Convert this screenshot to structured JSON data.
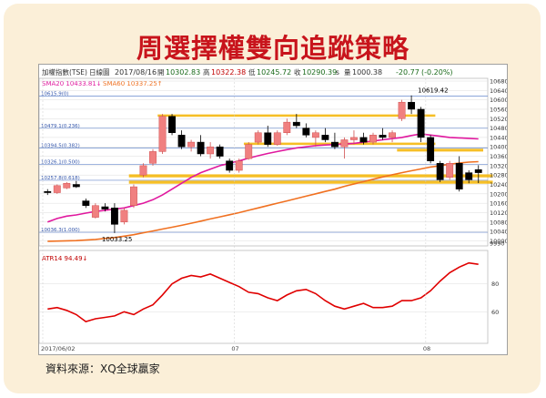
{
  "title": "周選擇權雙向追蹤策略",
  "source": "資料來源：XQ全球贏家",
  "header": {
    "index": "加權指數(TSE)",
    "period": "日線圖",
    "date": "2017/08/16",
    "open_label": "開",
    "open": "10302.83",
    "high_label": "高",
    "high": "10322.38",
    "low_label": "低",
    "low": "10245.72",
    "close_label": "收",
    "close": "10290.39",
    "close_suffix": "s",
    "volume_label": "量",
    "volume": "1000.38",
    "change": "-20.77",
    "change_pct": "(-0.20%)"
  },
  "legend": {
    "sma20": "SMA20 10433.81↓",
    "sma60": "SMA60 10337.25↑",
    "atr": "ATR14 94.49↓"
  },
  "colors": {
    "title": "#c8141c",
    "frame": "#fbefd8",
    "up": "#f08080",
    "down": "#000000",
    "sma20": "#e0189e",
    "sma60": "#f07020",
    "band": "#f5b400",
    "level": "#6688cc",
    "grid": "#dcdcdc"
  },
  "chart_data": [
    {
      "type": "candlestick",
      "title": "",
      "price_ticks": [
        "10680",
        "10640",
        "10600",
        "10560",
        "10520",
        "10480",
        "10440",
        "10400",
        "10360",
        "10320",
        "10280",
        "10240",
        "10200",
        "10160",
        "10120",
        "10080",
        "10040",
        "10000",
        "9990"
      ],
      "x_ticks": [
        "2017/06/02",
        "07",
        "08"
      ],
      "ylim": [
        9990,
        10680
      ],
      "annotations": [
        {
          "text": "10619.42",
          "x": 40,
          "y": 10619.42
        },
        {
          "text": "10033.25",
          "x": 7,
          "y": 10033.25
        }
      ],
      "levels": [
        {
          "label": "10615.9(0)",
          "value": 10615.9
        },
        {
          "label": "10479.1(0.236)",
          "value": 10479.1
        },
        {
          "label": "10394.5(0.382)",
          "value": 10394.5
        },
        {
          "label": "10326.1(0.500)",
          "value": 10326.1
        },
        {
          "label": "10257.8(0.618)",
          "value": 10257.8
        },
        {
          "label": "10036.3(1.000)",
          "value": 10036.3
        }
      ],
      "bands": [
        {
          "from": 12,
          "to": 40,
          "low": 10528,
          "high": 10538
        },
        {
          "from": 21,
          "to": 40,
          "low": 10408,
          "high": 10418
        },
        {
          "from": 37,
          "to": 45,
          "low": 10380,
          "high": 10392
        },
        {
          "from": 9,
          "to": 46,
          "low": 10270,
          "high": 10283
        },
        {
          "from": 9,
          "to": 46,
          "low": 10243,
          "high": 10256
        }
      ],
      "candles": [
        {
          "o": 10210,
          "h": 10220,
          "l": 10195,
          "c": 10205
        },
        {
          "o": 10205,
          "h": 10240,
          "l": 10200,
          "c": 10235
        },
        {
          "o": 10225,
          "h": 10250,
          "l": 10220,
          "c": 10245
        },
        {
          "o": 10240,
          "h": 10255,
          "l": 10225,
          "c": 10230
        },
        {
          "o": 10170,
          "h": 10180,
          "l": 10140,
          "c": 10150
        },
        {
          "o": 10100,
          "h": 10160,
          "l": 10095,
          "c": 10150
        },
        {
          "o": 10145,
          "h": 10160,
          "l": 10125,
          "c": 10135
        },
        {
          "o": 10140,
          "h": 10160,
          "l": 10033,
          "c": 10070
        },
        {
          "o": 10080,
          "h": 10140,
          "l": 10070,
          "c": 10130
        },
        {
          "o": 10150,
          "h": 10240,
          "l": 10140,
          "c": 10230
        },
        {
          "o": 10280,
          "h": 10330,
          "l": 10270,
          "c": 10320
        },
        {
          "o": 10330,
          "h": 10390,
          "l": 10320,
          "c": 10380
        },
        {
          "o": 10380,
          "h": 10540,
          "l": 10370,
          "c": 10530
        },
        {
          "o": 10530,
          "h": 10540,
          "l": 10450,
          "c": 10460
        },
        {
          "o": 10450,
          "h": 10470,
          "l": 10390,
          "c": 10400
        },
        {
          "o": 10400,
          "h": 10430,
          "l": 10380,
          "c": 10420
        },
        {
          "o": 10420,
          "h": 10450,
          "l": 10360,
          "c": 10370
        },
        {
          "o": 10370,
          "h": 10420,
          "l": 10350,
          "c": 10400
        },
        {
          "o": 10400,
          "h": 10410,
          "l": 10350,
          "c": 10360
        },
        {
          "o": 10340,
          "h": 10350,
          "l": 10290,
          "c": 10300
        },
        {
          "o": 10300,
          "h": 10350,
          "l": 10290,
          "c": 10340
        },
        {
          "o": 10350,
          "h": 10420,
          "l": 10345,
          "c": 10410
        },
        {
          "o": 10420,
          "h": 10470,
          "l": 10410,
          "c": 10460
        },
        {
          "o": 10460,
          "h": 10490,
          "l": 10400,
          "c": 10410
        },
        {
          "o": 10410,
          "h": 10470,
          "l": 10405,
          "c": 10460
        },
        {
          "o": 10460,
          "h": 10520,
          "l": 10450,
          "c": 10505
        },
        {
          "o": 10505,
          "h": 10540,
          "l": 10480,
          "c": 10490
        },
        {
          "o": 10480,
          "h": 10500,
          "l": 10440,
          "c": 10450
        },
        {
          "o": 10440,
          "h": 10470,
          "l": 10400,
          "c": 10460
        },
        {
          "o": 10450,
          "h": 10480,
          "l": 10420,
          "c": 10430
        },
        {
          "o": 10420,
          "h": 10460,
          "l": 10390,
          "c": 10400
        },
        {
          "o": 10400,
          "h": 10440,
          "l": 10350,
          "c": 10430
        },
        {
          "o": 10430,
          "h": 10470,
          "l": 10410,
          "c": 10440
        },
        {
          "o": 10440,
          "h": 10460,
          "l": 10410,
          "c": 10420
        },
        {
          "o": 10420,
          "h": 10460,
          "l": 10410,
          "c": 10450
        },
        {
          "o": 10450,
          "h": 10480,
          "l": 10430,
          "c": 10440
        },
        {
          "o": 10440,
          "h": 10470,
          "l": 10420,
          "c": 10460
        },
        {
          "o": 10520,
          "h": 10600,
          "l": 10510,
          "c": 10590
        },
        {
          "o": 10590,
          "h": 10619,
          "l": 10540,
          "c": 10560
        },
        {
          "o": 10560,
          "h": 10570,
          "l": 10420,
          "c": 10440
        },
        {
          "o": 10440,
          "h": 10450,
          "l": 10330,
          "c": 10340
        },
        {
          "o": 10330,
          "h": 10340,
          "l": 10250,
          "c": 10260
        },
        {
          "o": 10270,
          "h": 10340,
          "l": 10260,
          "c": 10330
        },
        {
          "o": 10330,
          "h": 10360,
          "l": 10210,
          "c": 10220
        },
        {
          "o": 10290,
          "h": 10300,
          "l": 10245,
          "c": 10260
        },
        {
          "o": 10303,
          "h": 10322,
          "l": 10246,
          "c": 10290
        }
      ],
      "sma20": [
        10080,
        10095,
        10105,
        10110,
        10118,
        10125,
        10130,
        10135,
        10140,
        10150,
        10160,
        10175,
        10195,
        10220,
        10245,
        10270,
        10290,
        10305,
        10320,
        10330,
        10340,
        10352,
        10362,
        10372,
        10380,
        10388,
        10395,
        10400,
        10405,
        10408,
        10410,
        10412,
        10415,
        10420,
        10425,
        10430,
        10435,
        10440,
        10448,
        10455,
        10450,
        10445,
        10440,
        10438,
        10436,
        10434
      ],
      "sma60": [
        9998,
        9999,
        10000,
        10001,
        10003,
        10006,
        10010,
        10014,
        10020,
        10026,
        10034,
        10042,
        10050,
        10058,
        10066,
        10075,
        10084,
        10093,
        10102,
        10111,
        10120,
        10130,
        10140,
        10150,
        10160,
        10170,
        10180,
        10190,
        10200,
        10210,
        10220,
        10232,
        10242,
        10252,
        10262,
        10272,
        10281,
        10290,
        10298,
        10306,
        10314,
        10320,
        10326,
        10331,
        10335,
        10337
      ]
    },
    {
      "type": "line",
      "title": "",
      "series_name": "ATR14",
      "y_ticks": [
        "80",
        "60"
      ],
      "ylim": [
        40,
        100
      ],
      "values": [
        62,
        63,
        61,
        58,
        53,
        55,
        56,
        57,
        60,
        58,
        62,
        65,
        72,
        80,
        84,
        86,
        85,
        87,
        84,
        81,
        78,
        74,
        73,
        70,
        68,
        72,
        75,
        76,
        73,
        68,
        64,
        62,
        64,
        66,
        63,
        63,
        64,
        68,
        68,
        70,
        75,
        82,
        88,
        92,
        95,
        94
      ]
    }
  ]
}
